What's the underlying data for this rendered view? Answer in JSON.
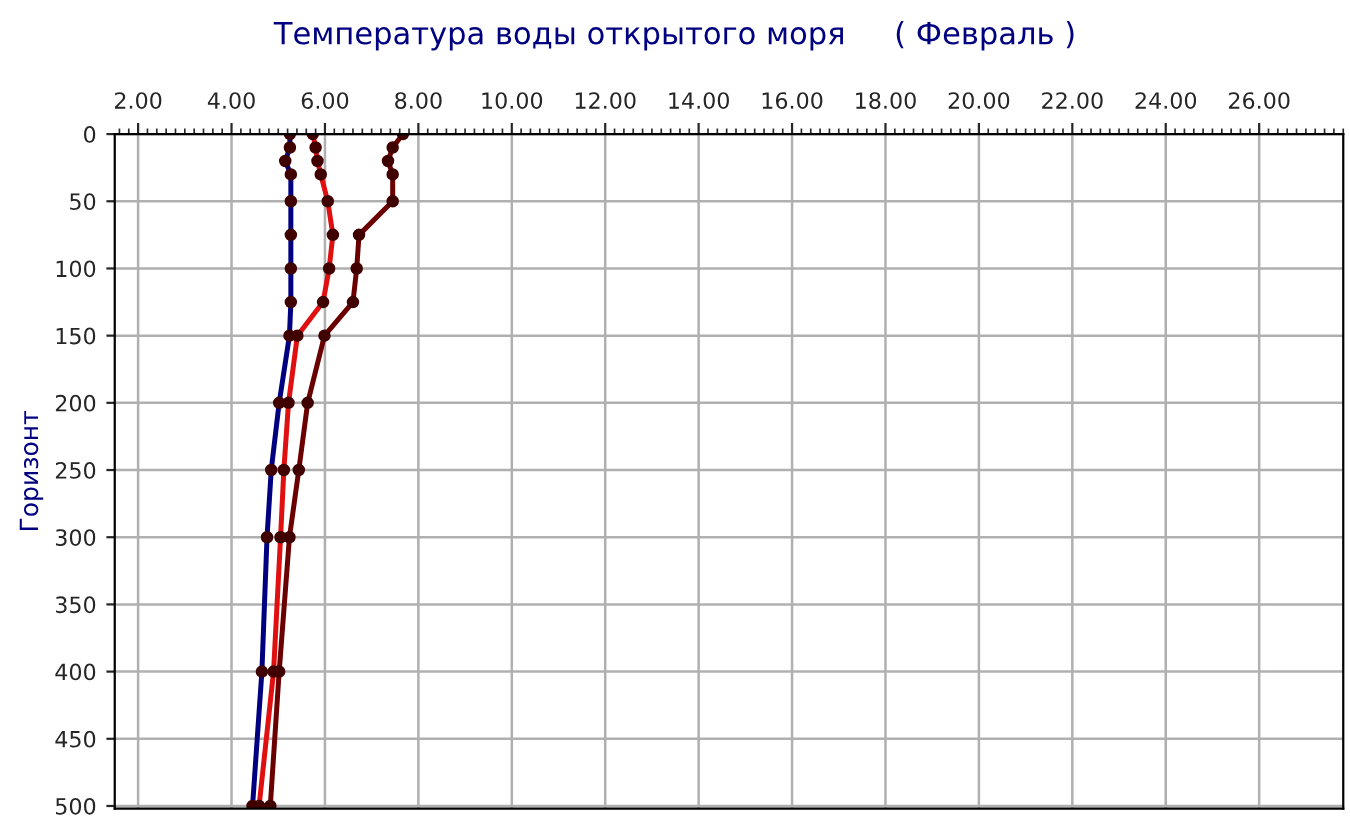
{
  "chart_data": {
    "type": "line",
    "title": "Температура воды открытого моря     ( Февраль )",
    "ylabel": "Горизонт",
    "x": [
      0,
      10,
      20,
      30,
      50,
      75,
      100,
      125,
      150,
      200,
      250,
      300,
      400,
      500
    ],
    "orientation": "horizontal",
    "series": [
      {
        "color": "#000080",
        "values": [
          5.25,
          5.25,
          5.15,
          5.27,
          5.27,
          5.27,
          5.27,
          5.27,
          5.24,
          5.02,
          4.85,
          4.76,
          4.65,
          4.45
        ]
      },
      {
        "color": "#e01010",
        "values": [
          5.74,
          5.8,
          5.84,
          5.91,
          6.06,
          6.17,
          6.09,
          5.96,
          5.41,
          5.22,
          5.12,
          5.05,
          4.9,
          4.59
        ]
      },
      {
        "color": "#6b0000",
        "values": [
          7.67,
          7.45,
          7.35,
          7.45,
          7.45,
          6.73,
          6.68,
          6.6,
          5.99,
          5.63,
          5.44,
          5.24,
          5.02,
          4.83
        ]
      }
    ],
    "marker": "circle",
    "line_style": "solid",
    "grid": true,
    "xlim": [
      1.5,
      27.8
    ],
    "xticks": [
      {
        "value": 2,
        "label": "2.00"
      },
      {
        "value": 4,
        "label": "4.00"
      },
      {
        "value": 6,
        "label": "6.00"
      },
      {
        "value": 8,
        "label": "8.00"
      },
      {
        "value": 10,
        "label": "10.00"
      },
      {
        "value": 12,
        "label": "12.00"
      },
      {
        "value": 14,
        "label": "14.00"
      },
      {
        "value": 16,
        "label": "16.00"
      },
      {
        "value": 18,
        "label": "18.00"
      },
      {
        "value": 20,
        "label": "20.00"
      },
      {
        "value": 22,
        "label": "22.00"
      },
      {
        "value": 24,
        "label": "24.00"
      },
      {
        "value": 26,
        "label": "26.00"
      }
    ],
    "ylim": [
      502,
      0
    ],
    "yticks": [
      0,
      50,
      100,
      150,
      200,
      250,
      300,
      350,
      400,
      450,
      500
    ]
  }
}
